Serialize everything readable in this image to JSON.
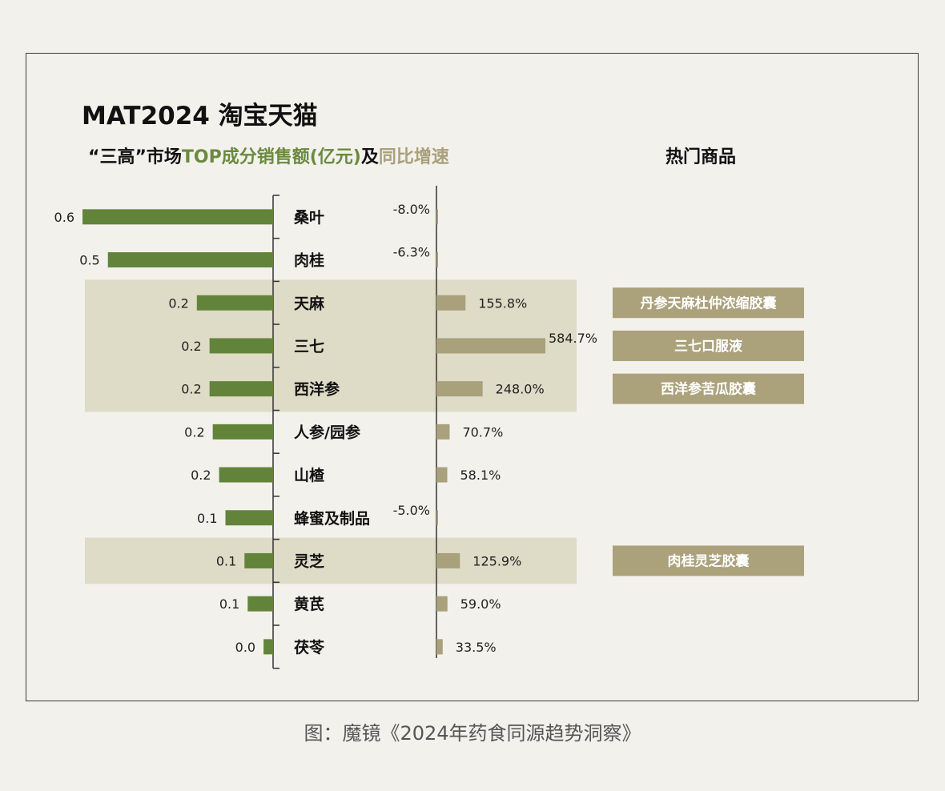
{
  "chart_data": {
    "type": "bar",
    "title": "MAT2024 淘宝天猫",
    "subtitle_parts": [
      {
        "text": "“三高”市场",
        "color": "#111111"
      },
      {
        "text": "TOP成分销售额(亿元)",
        "color": "#6a8a3e"
      },
      {
        "text": "及",
        "color": "#111111"
      },
      {
        "text": "同比增速",
        "color": "#a9a07c"
      }
    ],
    "right_header": "热门商品",
    "categories": [
      "桑叶",
      "肉桂",
      "天麻",
      "三七",
      "西洋参",
      "人参/园参",
      "山楂",
      "蜂蜜及制品",
      "灵芝",
      "黄芪",
      "茯苓"
    ],
    "series": [
      {
        "values": [
          0.6,
          0.5,
          0.2,
          0.2,
          0.2,
          0.2,
          0.2,
          0.1,
          0.1,
          0.1,
          0.0
        ],
        "labels": [
          "0.6",
          "0.5",
          "0.2",
          "0.2",
          "0.2",
          "0.2",
          "0.2",
          "0.1",
          "0.1",
          "0.1",
          "0.0"
        ],
        "bar_lengths": [
          0.6,
          0.52,
          0.24,
          0.2,
          0.2,
          0.19,
          0.17,
          0.15,
          0.09,
          0.08,
          0.03
        ],
        "color": "#62843a"
      },
      {
        "values": [
          -8.0,
          -6.3,
          155.8,
          584.7,
          248.0,
          70.7,
          58.1,
          -5.0,
          125.9,
          59.0,
          33.5
        ],
        "labels": [
          "-8.0%",
          "-6.3%",
          "155.8%",
          "584.7%",
          "248.0%",
          "70.7%",
          "58.1%",
          "-5.0%",
          "125.9%",
          "59.0%",
          "33.5%"
        ],
        "color": "#a9a07c"
      }
    ],
    "highlighted_groups": [
      [
        2,
        4
      ],
      [
        8,
        8
      ]
    ],
    "hot_products": [
      {
        "row": 2,
        "text": "丹参天麻杜仲浓缩胶囊"
      },
      {
        "row": 3,
        "text": "三七口服液"
      },
      {
        "row": 4,
        "text": "西洋参苦瓜胶囊"
      },
      {
        "row": 8,
        "text": "肉桂灵芝胶囊"
      }
    ],
    "colors": {
      "highlight": "#dedbc6",
      "product_box": "#aba17b",
      "axis": "#333333"
    }
  },
  "caption": "图：魔镜《2024年药食同源趋势洞察》"
}
